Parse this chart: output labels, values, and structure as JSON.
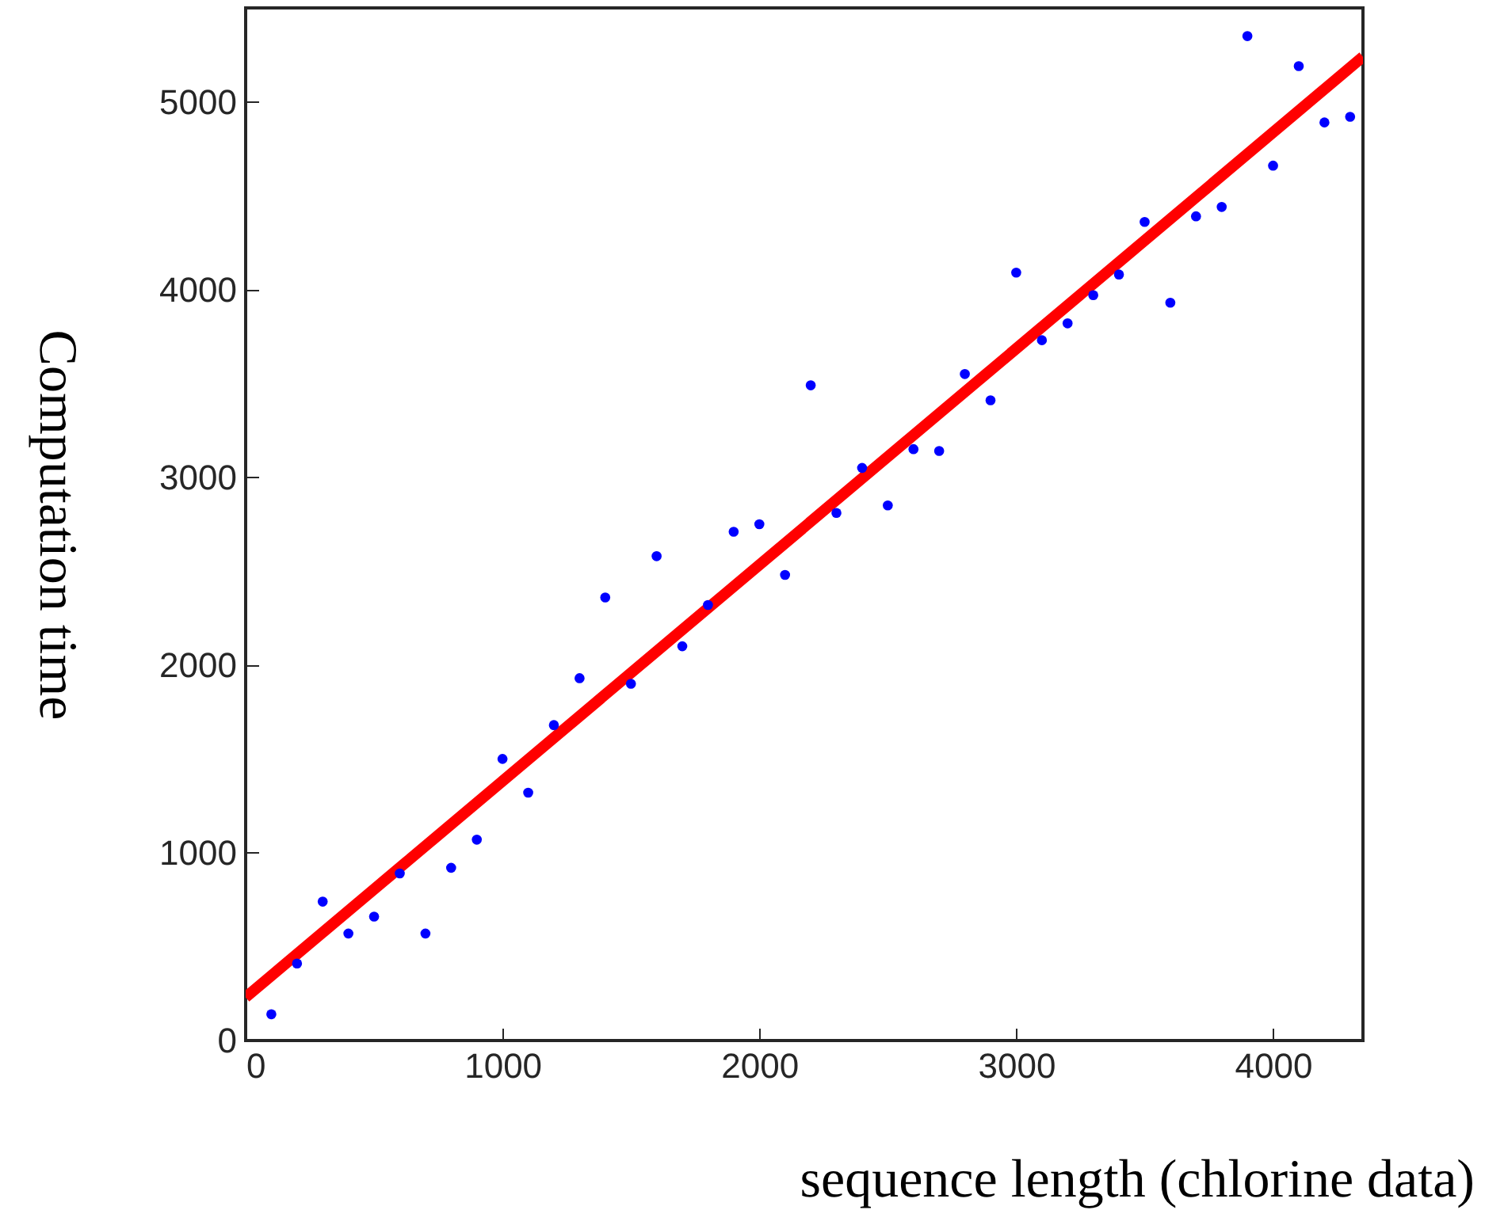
{
  "chart_data": {
    "type": "scatter",
    "xlabel": "sequence length (chlorine data)",
    "ylabel": "Computation time",
    "xlim": [
      0,
      4350
    ],
    "ylim": [
      0,
      5500
    ],
    "xticks": [
      0,
      1000,
      2000,
      3000,
      4000
    ],
    "yticks": [
      0,
      1000,
      2000,
      3000,
      4000,
      5000
    ],
    "grid": false,
    "series": [
      {
        "type": "scatter",
        "marker": "circle",
        "color": "#0000ff",
        "x": [
          100,
          200,
          300,
          400,
          500,
          600,
          700,
          800,
          900,
          1000,
          1100,
          1200,
          1300,
          1400,
          1500,
          1600,
          1700,
          1800,
          1900,
          2000,
          2100,
          2200,
          2300,
          2400,
          2500,
          2600,
          2700,
          2800,
          2900,
          3000,
          3100,
          3200,
          3300,
          3400,
          3500,
          3600,
          3700,
          3800,
          3900,
          4000,
          4100,
          4200,
          4300
        ],
        "values": [
          140,
          410,
          740,
          570,
          660,
          890,
          570,
          920,
          1070,
          1500,
          1320,
          1680,
          1930,
          2360,
          1900,
          2580,
          2100,
          2320,
          2710,
          2750,
          2480,
          3490,
          2810,
          3050,
          2850,
          3150,
          3140,
          3550,
          3410,
          4090,
          3730,
          3820,
          3970,
          4080,
          4360,
          3930,
          4390,
          4440,
          5350,
          4660,
          5190,
          4890,
          4920
        ]
      },
      {
        "type": "line",
        "color": "#ff0000",
        "line_style": "solid",
        "x": [
          0,
          4350
        ],
        "values": [
          230,
          5240
        ]
      }
    ]
  }
}
